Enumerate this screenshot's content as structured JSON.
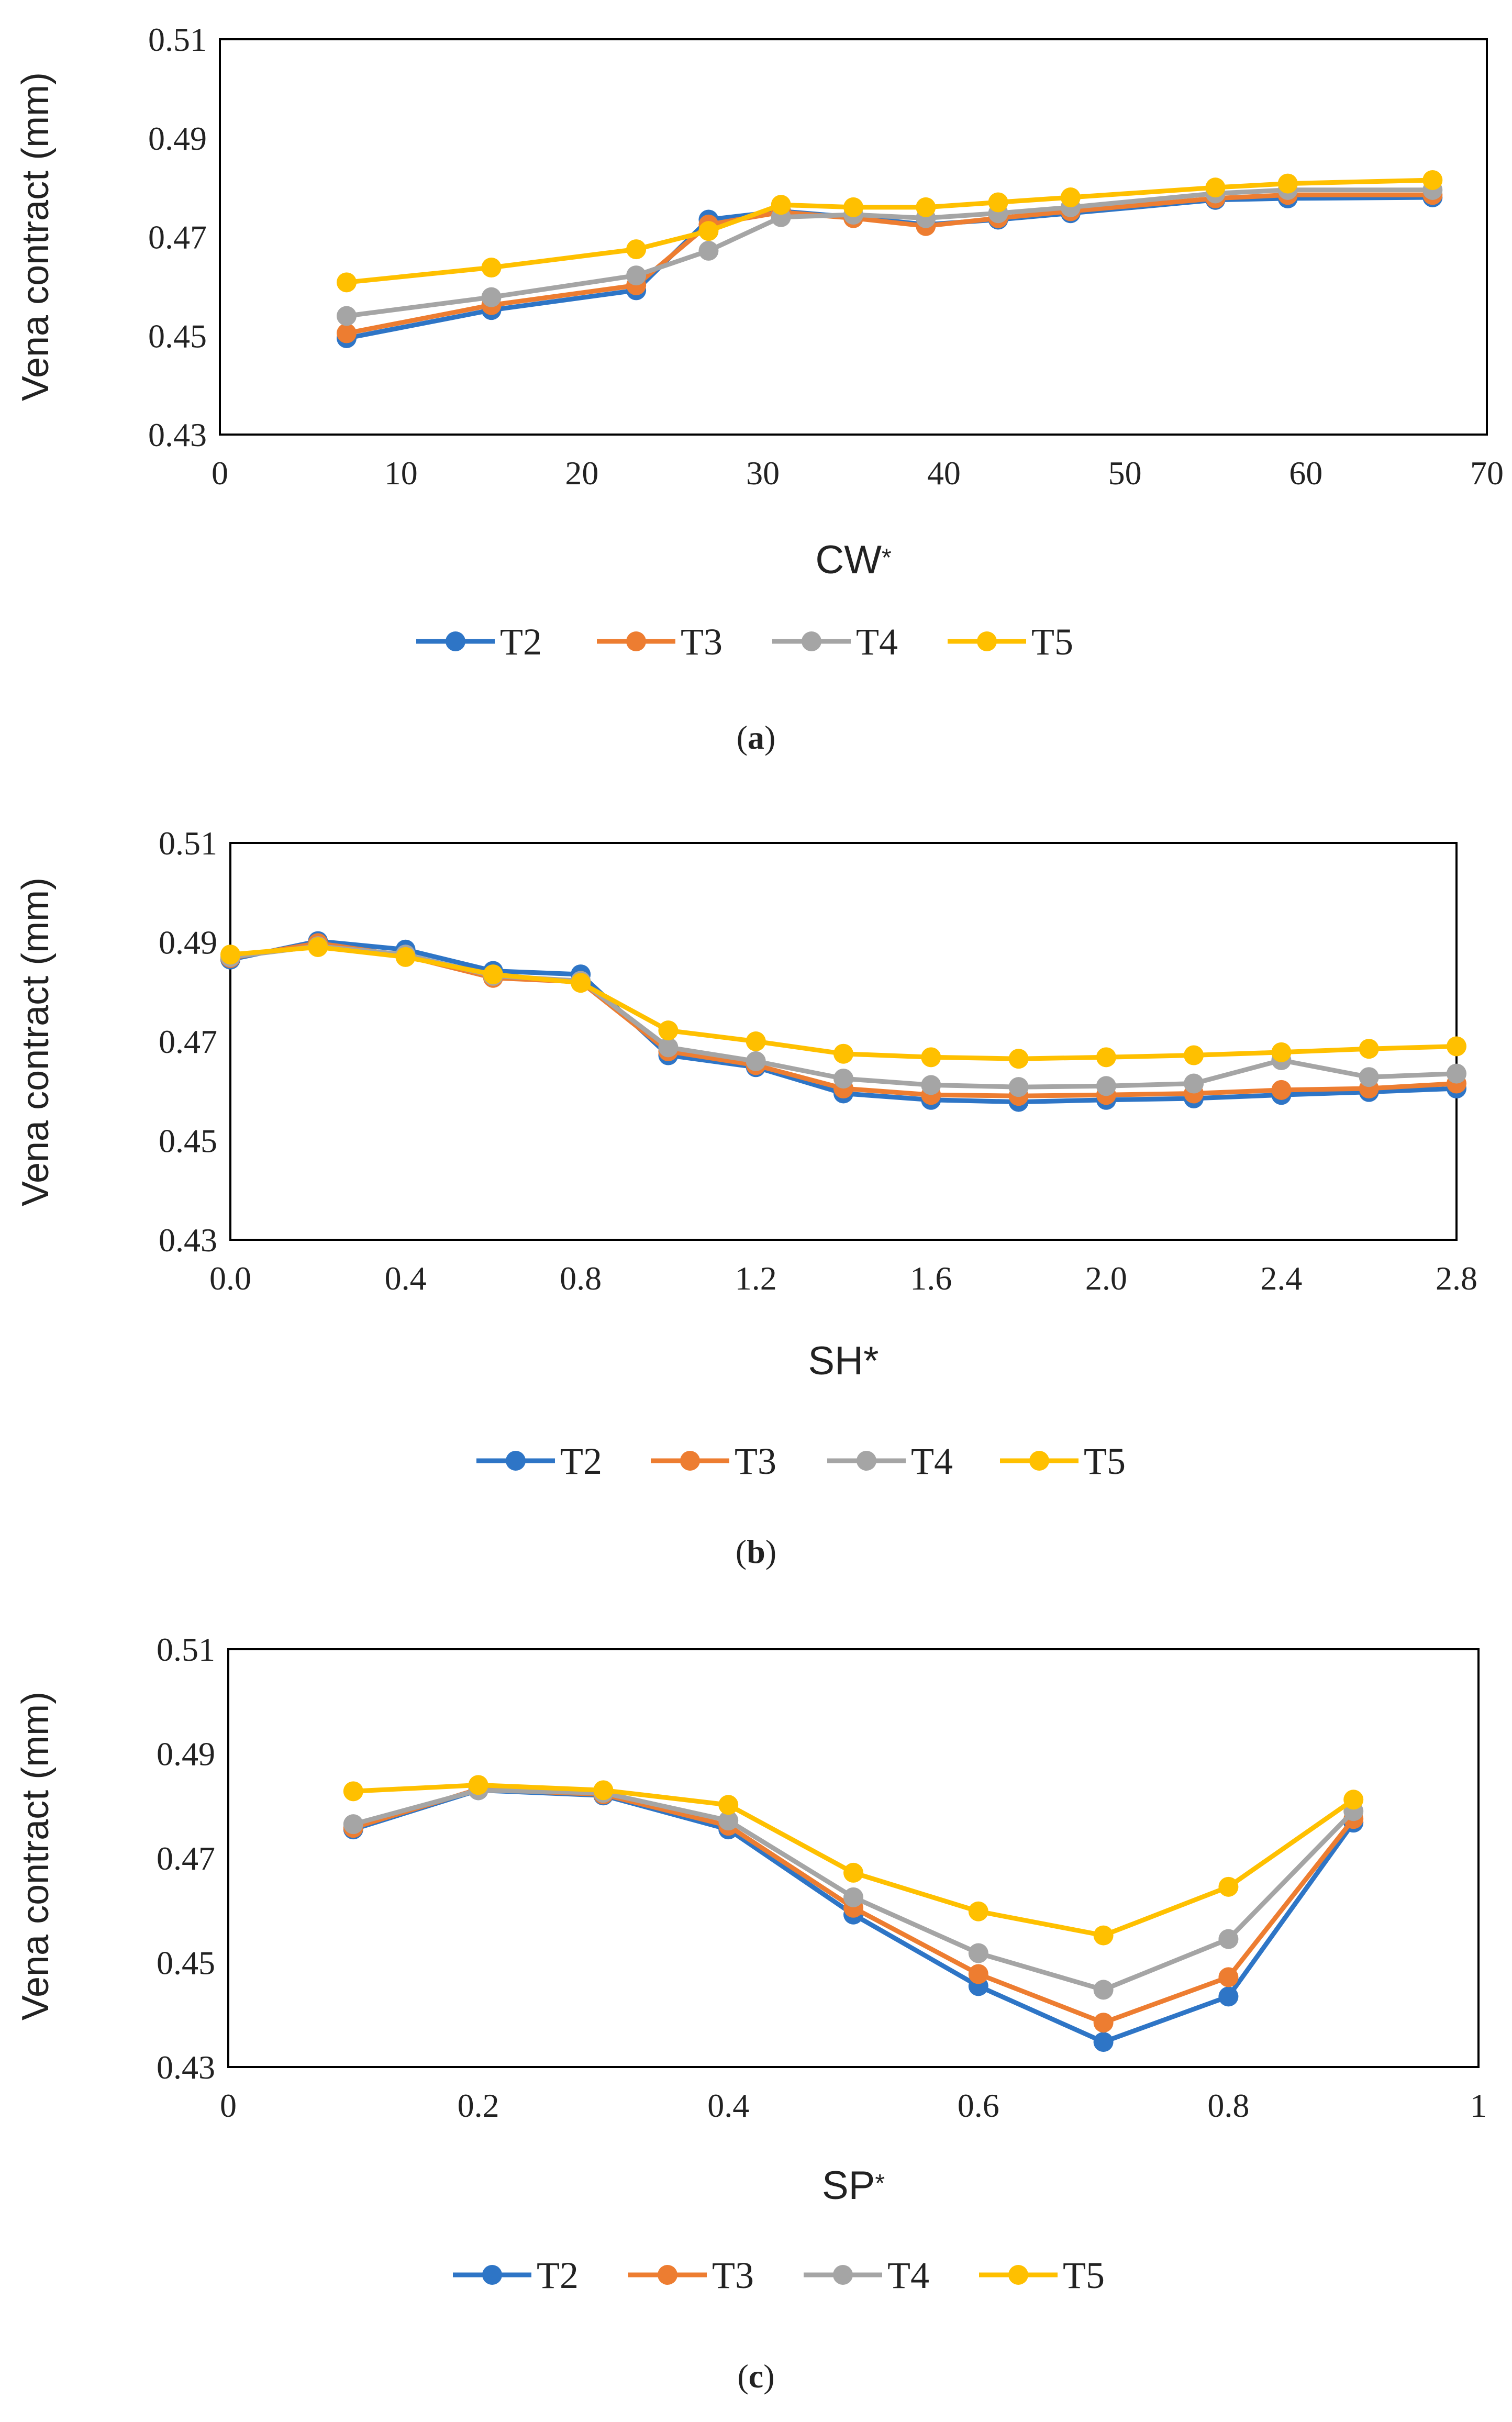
{
  "series_colors": {
    "T2": "#2E75C6",
    "T3": "#ED7D31",
    "T4": "#A5A5A5",
    "T5": "#FFC000"
  },
  "chart_data": [
    {
      "type": "line",
      "caption_letter": "a",
      "ylabel": "Vena contract (mm)",
      "xlabel": "CW",
      "xlabel_suffix": "*",
      "xlim": [
        0,
        70
      ],
      "ylim": [
        0.43,
        0.51
      ],
      "xticks": [
        "0",
        "10",
        "20",
        "30",
        "40",
        "50",
        "60",
        "70"
      ],
      "yticks": [
        "0.43",
        "0.45",
        "0.47",
        "0.49",
        "0.51"
      ],
      "x": [
        7,
        15,
        23,
        27,
        31,
        35,
        39,
        43,
        47,
        55,
        59,
        67
      ],
      "series": [
        {
          "name": "T2",
          "values": [
            0.4495,
            0.4552,
            0.4592,
            0.4735,
            0.4752,
            0.474,
            0.4725,
            0.4735,
            0.4748,
            0.4775,
            0.4778,
            0.478
          ]
        },
        {
          "name": "T3",
          "values": [
            0.4505,
            0.4562,
            0.4602,
            0.4725,
            0.475,
            0.4738,
            0.4722,
            0.4738,
            0.4752,
            0.4778,
            0.4785,
            0.4785
          ]
        },
        {
          "name": "T4",
          "values": [
            0.454,
            0.4578,
            0.4622,
            0.4672,
            0.474,
            0.4745,
            0.4738,
            0.4748,
            0.476,
            0.4788,
            0.4795,
            0.4795
          ]
        },
        {
          "name": "T5",
          "values": [
            0.4608,
            0.4638,
            0.4675,
            0.4712,
            0.4765,
            0.476,
            0.476,
            0.477,
            0.478,
            0.48,
            0.4808,
            0.4815
          ]
        }
      ],
      "legend": [
        "T2",
        "T3",
        "T4",
        "T5"
      ]
    },
    {
      "type": "line",
      "caption_letter": "b",
      "ylabel": "Vena contract (mm)",
      "xlabel": "SH*",
      "xlabel_suffix": "",
      "xlim": [
        0,
        2.8
      ],
      "ylim": [
        0.43,
        0.51
      ],
      "xticks": [
        "0.0",
        "0.4",
        "0.8",
        "1.2",
        "1.6",
        "2.0",
        "2.4",
        "2.8"
      ],
      "yticks": [
        "0.43",
        "0.45",
        "0.47",
        "0.49",
        "0.51"
      ],
      "x": [
        0,
        0.2,
        0.4,
        0.6,
        0.8,
        1.0,
        1.2,
        1.4,
        1.6,
        1.8,
        2.0,
        2.2,
        2.4,
        2.6,
        2.8
      ],
      "series": [
        {
          "name": "T2",
          "values": [
            0.4865,
            0.4902,
            0.4885,
            0.4842,
            0.4835,
            0.4672,
            0.4648,
            0.4595,
            0.4582,
            0.4578,
            0.4582,
            0.4585,
            0.4592,
            0.4598,
            0.4605
          ]
        },
        {
          "name": "T3",
          "values": [
            0.4868,
            0.4898,
            0.4872,
            0.4828,
            0.482,
            0.468,
            0.4652,
            0.4605,
            0.4592,
            0.459,
            0.4592,
            0.4595,
            0.4602,
            0.4605,
            0.4615
          ]
        },
        {
          "name": "T4",
          "values": [
            0.487,
            0.4892,
            0.4875,
            0.4832,
            0.4822,
            0.4688,
            0.466,
            0.4625,
            0.4612,
            0.4608,
            0.461,
            0.4615,
            0.4662,
            0.4628,
            0.4635
          ]
        },
        {
          "name": "T5",
          "values": [
            0.4875,
            0.489,
            0.487,
            0.4835,
            0.4818,
            0.4722,
            0.47,
            0.4675,
            0.4668,
            0.4665,
            0.4668,
            0.4672,
            0.4678,
            0.4685,
            0.469
          ]
        }
      ],
      "legend": [
        "T2",
        "T3",
        "T4",
        "T5"
      ]
    },
    {
      "type": "line",
      "caption_letter": "c",
      "ylabel": "Vena contract (mm)",
      "xlabel": "SP",
      "xlabel_suffix": "*",
      "xlim": [
        0,
        1
      ],
      "ylim": [
        0.43,
        0.51
      ],
      "xticks": [
        "0",
        "0.2",
        "0.4",
        "0.6",
        "0.8",
        "1"
      ],
      "yticks": [
        "0.43",
        "0.45",
        "0.47",
        "0.49",
        "0.51"
      ],
      "x": [
        0.1,
        0.2,
        0.3,
        0.4,
        0.5,
        0.6,
        0.7,
        0.8,
        0.9
      ],
      "series": [
        {
          "name": "T2",
          "values": [
            0.4755,
            0.483,
            0.482,
            0.4755,
            0.4592,
            0.4455,
            0.4348,
            0.4435,
            0.4768
          ]
        },
        {
          "name": "T3",
          "values": [
            0.4758,
            0.4832,
            0.4822,
            0.4762,
            0.4605,
            0.4478,
            0.4385,
            0.4472,
            0.4775
          ]
        },
        {
          "name": "T4",
          "values": [
            0.4765,
            0.483,
            0.4825,
            0.4772,
            0.4625,
            0.4518,
            0.4448,
            0.4545,
            0.479
          ]
        },
        {
          "name": "T5",
          "values": [
            0.4828,
            0.484,
            0.483,
            0.4802,
            0.4672,
            0.4598,
            0.4552,
            0.4645,
            0.4812
          ]
        }
      ],
      "legend": [
        "T2",
        "T3",
        "T4",
        "T5"
      ]
    }
  ]
}
